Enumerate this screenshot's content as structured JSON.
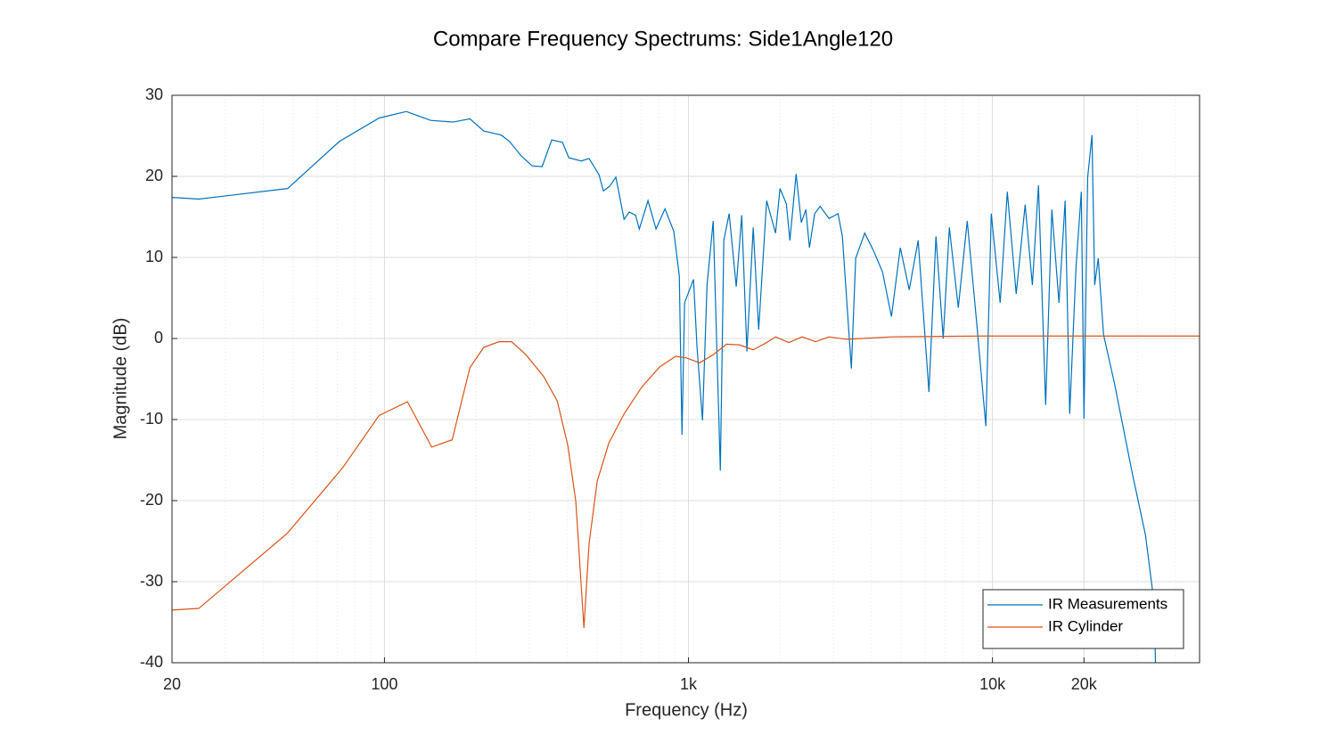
{
  "chart_data": {
    "type": "line",
    "title": "Compare Frequency Spectrums: Side1Angle120",
    "x_label": "Frequency (Hz)",
    "y_label": "Magnitude (dB)",
    "x_scale": "log",
    "xlim": [
      20,
      48000
    ],
    "ylim": [
      -40,
      30
    ],
    "xticks": [
      20,
      100,
      {
        "value": 1000,
        "label": "1k"
      },
      {
        "value": 10000,
        "label": "10k"
      },
      {
        "value": 20000,
        "label": "20k"
      }
    ],
    "x_minor_ticks": [
      30,
      40,
      50,
      60,
      70,
      80,
      90,
      200,
      300,
      400,
      500,
      600,
      700,
      800,
      900,
      2000,
      3000,
      4000,
      5000,
      6000,
      7000,
      8000,
      9000,
      30000,
      40000
    ],
    "yticks": [
      -40,
      -30,
      -20,
      -10,
      0,
      10,
      20,
      30
    ],
    "grid": true,
    "minor_grid": true,
    "legend": "lower right",
    "series": [
      {
        "name": "IR Measurements",
        "color": "#0072bd",
        "x": [
          20,
          24.5,
          48,
          71,
          96,
          118,
          142,
          168,
          191,
          212,
          242,
          258,
          282,
          306,
          330,
          355,
          385,
          404,
          444,
          471,
          508,
          525,
          551,
          577,
          614,
          639,
          670,
          689,
          736,
          782,
          837,
          895,
          933,
          952,
          971,
          1039,
          1067,
          1112,
          1151,
          1206,
          1273,
          1307,
          1361,
          1436,
          1497,
          1557,
          1633,
          1702,
          1808,
          1934,
          2000,
          2099,
          2156,
          2260,
          2350,
          2433,
          2500,
          2601,
          2711,
          2899,
          3105,
          3208,
          3434,
          3549,
          3800,
          4066,
          4349,
          4652,
          4976,
          5323,
          5696,
          6181,
          6518,
          6886,
          7213,
          7720,
          8260,
          8836,
          9511,
          9909,
          10600,
          11190,
          11970,
          12810,
          13530,
          14170,
          14960,
          15680,
          16550,
          17340,
          17950,
          18830,
          19600,
          20000,
          20560,
          21250,
          21690,
          22280,
          23190,
          25180,
          28790,
          31850,
          34120,
          34360
        ],
        "values": [
          17.4,
          17.2,
          18.5,
          24.3,
          27.2,
          28.0,
          26.9,
          26.7,
          27.1,
          25.6,
          25.1,
          24.3,
          22.5,
          21.3,
          21.2,
          24.5,
          24.2,
          22.3,
          21.9,
          22.2,
          20.2,
          18.2,
          18.8,
          19.9,
          14.7,
          15.6,
          15.2,
          13.5,
          17.0,
          13.5,
          16.0,
          13.2,
          7.7,
          -11.9,
          4.4,
          7.3,
          -1.1,
          -10.1,
          6.6,
          14.5,
          -16.3,
          12.1,
          15.4,
          6.4,
          15.2,
          -1.6,
          13.7,
          1.1,
          17.0,
          13.0,
          18.5,
          16.6,
          12.1,
          20.3,
          14.3,
          15.9,
          11.2,
          15.4,
          16.3,
          14.8,
          15.4,
          12.6,
          -3.7,
          9.9,
          13.0,
          10.8,
          8.2,
          2.7,
          11.2,
          6.0,
          12.1,
          -6.6,
          12.6,
          0.0,
          13.7,
          3.8,
          14.5,
          2.7,
          -10.8,
          15.4,
          4.4,
          18.1,
          5.5,
          16.5,
          6.6,
          18.9,
          -8.2,
          15.9,
          4.4,
          17.0,
          -9.3,
          8.8,
          18.1,
          -9.9,
          19.8,
          25.1,
          6.6,
          9.9,
          0.5,
          -5.5,
          -16.5,
          -24.2,
          -33.0,
          -40.0
        ]
      },
      {
        "name": "IR Cylinder",
        "color": "#d95319",
        "x": [
          20,
          24.5,
          48,
          73,
          96,
          119,
          143,
          167,
          191,
          212,
          238,
          262,
          292,
          334,
          370,
          401,
          426,
          453,
          471,
          501,
          547,
          614,
          702,
          804,
          908,
          984,
          1089,
          1206,
          1334,
          1476,
          1633,
          1808,
          1934,
          2138,
          2366,
          2618,
          2899,
          3319,
          4652,
          9141,
          48000
        ],
        "values": [
          -33.5,
          -33.3,
          -24.0,
          -15.9,
          -9.5,
          -7.8,
          -13.4,
          -12.5,
          -3.6,
          -1.1,
          -0.4,
          -0.4,
          -2.0,
          -4.7,
          -7.7,
          -13.2,
          -20.1,
          -35.7,
          -25.3,
          -17.6,
          -12.9,
          -9.3,
          -6.0,
          -3.5,
          -2.2,
          -2.4,
          -3.0,
          -2.0,
          -0.7,
          -0.8,
          -1.4,
          -0.5,
          0.2,
          -0.5,
          0.2,
          -0.4,
          0.2,
          -0.1,
          0.2,
          0.3,
          0.3
        ]
      }
    ]
  }
}
